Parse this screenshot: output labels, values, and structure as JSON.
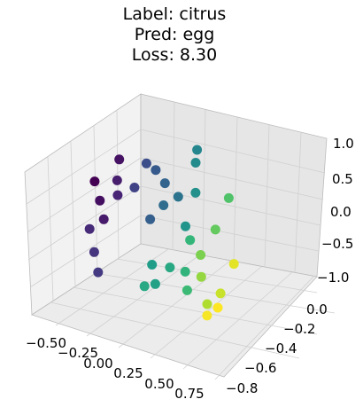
{
  "chart_data": {
    "type": "scatter3d",
    "title_lines": [
      "Label: citrus",
      "Pred: egg",
      "Loss: 8.30"
    ],
    "x_ticks": [
      "−0.50",
      "−0.25",
      "0.00",
      "0.25",
      "0.50",
      "0.75"
    ],
    "y_ticks": [
      "0.0",
      "−0.2",
      "−0.4",
      "−0.6",
      "−0.8"
    ],
    "z_ticks": [
      "1.0",
      "0.5",
      "0.0",
      "−0.5",
      "−1.0"
    ],
    "xlim": [
      -0.6,
      0.85
    ],
    "ylim": [
      -0.85,
      0.08
    ],
    "zlim": [
      -1.0,
      1.0
    ],
    "colormap": "viridis",
    "grid": true,
    "points": [
      {
        "x": -0.55,
        "y": -0.02,
        "z": -0.02,
        "c": 0.0
      },
      {
        "x": -0.47,
        "y": -0.1,
        "z": -0.15,
        "c": 0.04
      },
      {
        "x": -0.4,
        "y": -0.18,
        "z": -0.28,
        "c": 0.07
      },
      {
        "x": -0.35,
        "y": -0.05,
        "z": 0.42,
        "c": 0.05
      },
      {
        "x": -0.3,
        "y": -0.18,
        "z": 0.3,
        "c": 0.08
      },
      {
        "x": -0.25,
        "y": -0.27,
        "z": 0.22,
        "c": 0.1
      },
      {
        "x": -0.42,
        "y": -0.35,
        "z": -0.25,
        "c": 0.12
      },
      {
        "x": -0.35,
        "y": -0.42,
        "z": -0.45,
        "c": 0.15
      },
      {
        "x": -0.28,
        "y": -0.5,
        "z": -0.6,
        "c": 0.17
      },
      {
        "x": -0.2,
        "y": -0.12,
        "z": 0.2,
        "c": 0.2
      },
      {
        "x": -0.12,
        "y": -0.1,
        "z": 0.55,
        "c": 0.24
      },
      {
        "x": -0.02,
        "y": -0.16,
        "z": 0.58,
        "c": 0.28
      },
      {
        "x": 0.08,
        "y": -0.22,
        "z": 0.52,
        "c": 0.32
      },
      {
        "x": 0.05,
        "y": -0.38,
        "z": 0.18,
        "c": 0.3
      },
      {
        "x": 0.14,
        "y": -0.36,
        "z": 0.4,
        "c": 0.35
      },
      {
        "x": 0.22,
        "y": -0.3,
        "z": 0.5,
        "c": 0.38
      },
      {
        "x": 0.26,
        "y": -0.1,
        "z": 0.95,
        "c": 0.46
      },
      {
        "x": 0.28,
        "y": -0.16,
        "z": 0.85,
        "c": 0.48
      },
      {
        "x": 0.32,
        "y": -0.24,
        "z": 0.55,
        "c": 0.5
      },
      {
        "x": 0.3,
        "y": -0.35,
        "z": 0.2,
        "c": 0.52
      },
      {
        "x": 0.15,
        "y": -0.55,
        "z": -0.2,
        "c": 0.55
      },
      {
        "x": 0.2,
        "y": -0.6,
        "z": -0.38,
        "c": 0.57
      },
      {
        "x": 0.18,
        "y": -0.72,
        "z": -0.3,
        "c": 0.6
      },
      {
        "x": 0.3,
        "y": -0.58,
        "z": -0.12,
        "c": 0.6
      },
      {
        "x": 0.4,
        "y": -0.55,
        "z": -0.15,
        "c": 0.65
      },
      {
        "x": 0.45,
        "y": -0.62,
        "z": -0.3,
        "c": 0.68
      },
      {
        "x": 0.36,
        "y": -0.4,
        "z": 0.1,
        "c": 0.66
      },
      {
        "x": 0.6,
        "y": -0.3,
        "z": 0.7,
        "c": 0.72
      },
      {
        "x": 0.55,
        "y": -0.4,
        "z": 0.35,
        "c": 0.76
      },
      {
        "x": 0.48,
        "y": -0.48,
        "z": 0.05,
        "c": 0.8
      },
      {
        "x": 0.52,
        "y": -0.55,
        "z": -0.15,
        "c": 0.84
      },
      {
        "x": 0.6,
        "y": -0.62,
        "z": -0.4,
        "c": 0.88
      },
      {
        "x": 0.68,
        "y": -0.58,
        "z": -0.25,
        "c": 0.92
      },
      {
        "x": 0.74,
        "y": -0.5,
        "z": 0.1,
        "c": 0.96
      },
      {
        "x": 0.64,
        "y": -0.7,
        "z": -0.45,
        "c": 0.99
      },
      {
        "x": 0.7,
        "y": -0.66,
        "z": -0.35,
        "c": 1.0
      }
    ]
  }
}
